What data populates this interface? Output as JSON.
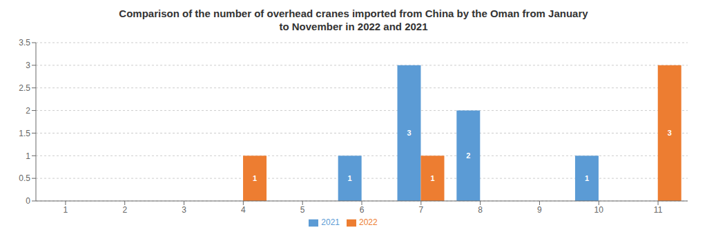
{
  "chart_data": {
    "type": "bar",
    "title": "Comparison of the number of overhead cranes imported from China by the Oman from January\nto November in 2022 and 2021",
    "categories": [
      "1",
      "2",
      "3",
      "4",
      "5",
      "6",
      "7",
      "8",
      "9",
      "10",
      "11"
    ],
    "series": [
      {
        "name": "2021",
        "color": "#5B9BD5",
        "values": [
          0,
          0,
          0,
          0,
          0,
          1,
          3,
          2,
          0,
          1,
          0
        ]
      },
      {
        "name": "2022",
        "color": "#ED7D31",
        "values": [
          0,
          0,
          0,
          1,
          0,
          0,
          1,
          0,
          0,
          0,
          3
        ]
      }
    ],
    "ylim": [
      0,
      3.5
    ],
    "yticks": [
      0,
      0.5,
      1,
      1.5,
      2,
      2.5,
      3,
      3.5
    ],
    "grid": true,
    "legend": "bottom",
    "data_labels": true
  }
}
